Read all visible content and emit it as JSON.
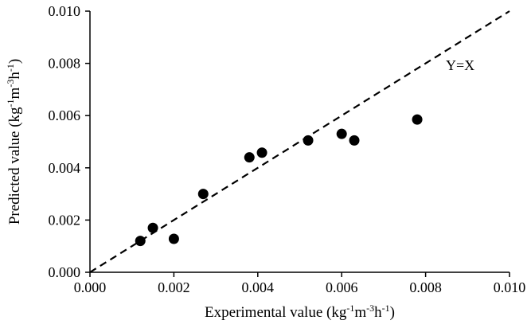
{
  "chart_data": {
    "type": "scatter",
    "xlabel": "Experimental value (kg",
    "xlabel_unit_parts": [
      "-1",
      "m",
      "-3",
      "h",
      "-1",
      ")"
    ],
    "ylabel": "Predicted value (kg",
    "ylabel_unit_parts": [
      "-1",
      "m",
      "-3",
      "h",
      "-1",
      ")"
    ],
    "xlim": [
      0,
      0.01
    ],
    "ylim": [
      0,
      0.01
    ],
    "x_ticks": [
      "0.000",
      "0.002",
      "0.004",
      "0.006",
      "0.008",
      "0.010"
    ],
    "y_ticks": [
      "0.000",
      "0.002",
      "0.004",
      "0.006",
      "0.008",
      "0.010"
    ],
    "grid": false,
    "legend": "none",
    "points": [
      {
        "x": 0.0012,
        "y": 0.0012
      },
      {
        "x": 0.0015,
        "y": 0.0017
      },
      {
        "x": 0.002,
        "y": 0.00128
      },
      {
        "x": 0.0027,
        "y": 0.003
      },
      {
        "x": 0.0038,
        "y": 0.0044
      },
      {
        "x": 0.0041,
        "y": 0.00458
      },
      {
        "x": 0.0052,
        "y": 0.00505
      },
      {
        "x": 0.006,
        "y": 0.0053
      },
      {
        "x": 0.0063,
        "y": 0.00505
      },
      {
        "x": 0.0078,
        "y": 0.00585
      }
    ],
    "reference_line": {
      "label": "Y=X",
      "style": "dashed",
      "from": [
        0,
        0
      ],
      "to": [
        0.01,
        0.01
      ]
    },
    "colors": {
      "points": "#000000",
      "line": "#000000",
      "axis": "#000000"
    }
  }
}
